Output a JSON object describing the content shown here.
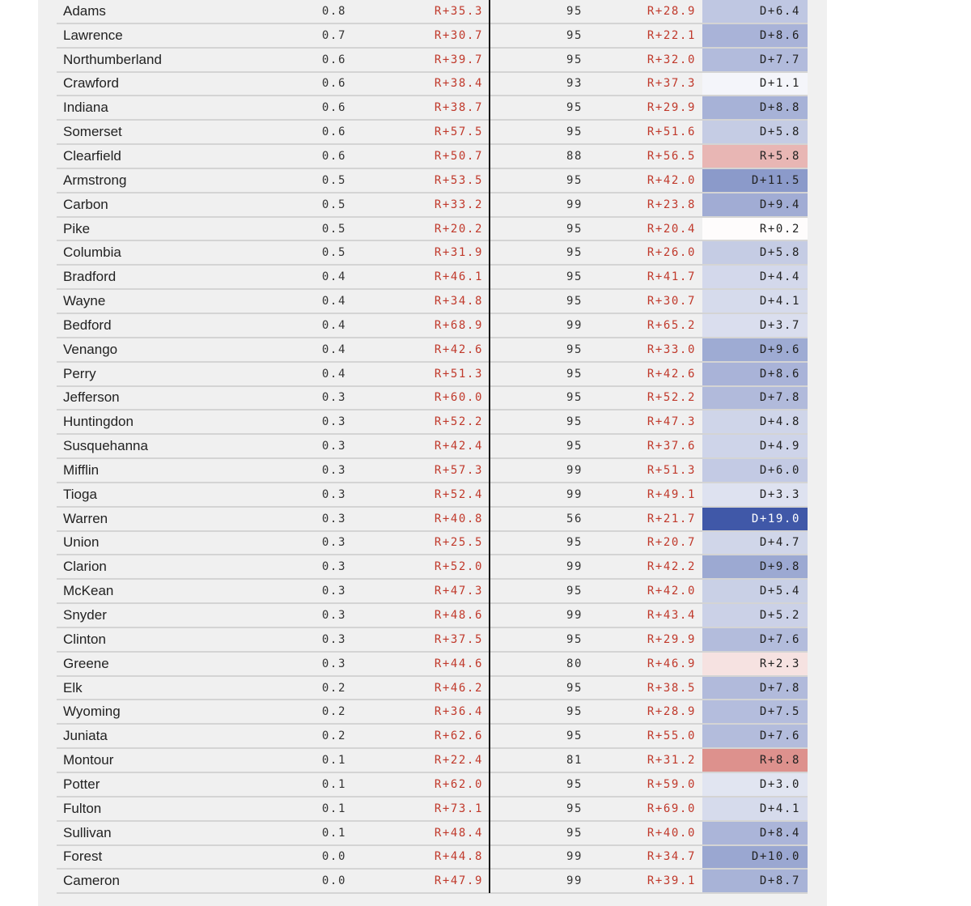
{
  "colors": {
    "panel_background": "#f0f0f0",
    "row_border": "#d4d4d4",
    "margin_text": "#c0392b",
    "democratic_shift": "#4058a8",
    "republican_shift": "#dc8e8a"
  },
  "rows": [
    {
      "county": "Adams",
      "share": "0.8",
      "margin_2016": "R+35.3",
      "reporting": "95",
      "margin_2020": "R+28.9",
      "shift": "D+6.4"
    },
    {
      "county": "Lawrence",
      "share": "0.7",
      "margin_2016": "R+30.7",
      "reporting": "95",
      "margin_2020": "R+22.1",
      "shift": "D+8.6"
    },
    {
      "county": "Northumberland",
      "share": "0.6",
      "margin_2016": "R+39.7",
      "reporting": "95",
      "margin_2020": "R+32.0",
      "shift": "D+7.7"
    },
    {
      "county": "Crawford",
      "share": "0.6",
      "margin_2016": "R+38.4",
      "reporting": "93",
      "margin_2020": "R+37.3",
      "shift": "D+1.1"
    },
    {
      "county": "Indiana",
      "share": "0.6",
      "margin_2016": "R+38.7",
      "reporting": "95",
      "margin_2020": "R+29.9",
      "shift": "D+8.8"
    },
    {
      "county": "Somerset",
      "share": "0.6",
      "margin_2016": "R+57.5",
      "reporting": "95",
      "margin_2020": "R+51.6",
      "shift": "D+5.8"
    },
    {
      "county": "Clearfield",
      "share": "0.6",
      "margin_2016": "R+50.7",
      "reporting": "88",
      "margin_2020": "R+56.5",
      "shift": "R+5.8"
    },
    {
      "county": "Armstrong",
      "share": "0.5",
      "margin_2016": "R+53.5",
      "reporting": "95",
      "margin_2020": "R+42.0",
      "shift": "D+11.5"
    },
    {
      "county": "Carbon",
      "share": "0.5",
      "margin_2016": "R+33.2",
      "reporting": "99",
      "margin_2020": "R+23.8",
      "shift": "D+9.4"
    },
    {
      "county": "Pike",
      "share": "0.5",
      "margin_2016": "R+20.2",
      "reporting": "95",
      "margin_2020": "R+20.4",
      "shift": "R+0.2"
    },
    {
      "county": "Columbia",
      "share": "0.5",
      "margin_2016": "R+31.9",
      "reporting": "95",
      "margin_2020": "R+26.0",
      "shift": "D+5.8"
    },
    {
      "county": "Bradford",
      "share": "0.4",
      "margin_2016": "R+46.1",
      "reporting": "95",
      "margin_2020": "R+41.7",
      "shift": "D+4.4"
    },
    {
      "county": "Wayne",
      "share": "0.4",
      "margin_2016": "R+34.8",
      "reporting": "95",
      "margin_2020": "R+30.7",
      "shift": "D+4.1"
    },
    {
      "county": "Bedford",
      "share": "0.4",
      "margin_2016": "R+68.9",
      "reporting": "99",
      "margin_2020": "R+65.2",
      "shift": "D+3.7"
    },
    {
      "county": "Venango",
      "share": "0.4",
      "margin_2016": "R+42.6",
      "reporting": "95",
      "margin_2020": "R+33.0",
      "shift": "D+9.6"
    },
    {
      "county": "Perry",
      "share": "0.4",
      "margin_2016": "R+51.3",
      "reporting": "95",
      "margin_2020": "R+42.6",
      "shift": "D+8.6"
    },
    {
      "county": "Jefferson",
      "share": "0.3",
      "margin_2016": "R+60.0",
      "reporting": "95",
      "margin_2020": "R+52.2",
      "shift": "D+7.8"
    },
    {
      "county": "Huntingdon",
      "share": "0.3",
      "margin_2016": "R+52.2",
      "reporting": "95",
      "margin_2020": "R+47.3",
      "shift": "D+4.8"
    },
    {
      "county": "Susquehanna",
      "share": "0.3",
      "margin_2016": "R+42.4",
      "reporting": "95",
      "margin_2020": "R+37.6",
      "shift": "D+4.9"
    },
    {
      "county": "Mifflin",
      "share": "0.3",
      "margin_2016": "R+57.3",
      "reporting": "99",
      "margin_2020": "R+51.3",
      "shift": "D+6.0"
    },
    {
      "county": "Tioga",
      "share": "0.3",
      "margin_2016": "R+52.4",
      "reporting": "99",
      "margin_2020": "R+49.1",
      "shift": "D+3.3"
    },
    {
      "county": "Warren",
      "share": "0.3",
      "margin_2016": "R+40.8",
      "reporting": "56",
      "margin_2020": "R+21.7",
      "shift": "D+19.0"
    },
    {
      "county": "Union",
      "share": "0.3",
      "margin_2016": "R+25.5",
      "reporting": "95",
      "margin_2020": "R+20.7",
      "shift": "D+4.7"
    },
    {
      "county": "Clarion",
      "share": "0.3",
      "margin_2016": "R+52.0",
      "reporting": "99",
      "margin_2020": "R+42.2",
      "shift": "D+9.8"
    },
    {
      "county": "McKean",
      "share": "0.3",
      "margin_2016": "R+47.3",
      "reporting": "95",
      "margin_2020": "R+42.0",
      "shift": "D+5.4"
    },
    {
      "county": "Snyder",
      "share": "0.3",
      "margin_2016": "R+48.6",
      "reporting": "99",
      "margin_2020": "R+43.4",
      "shift": "D+5.2"
    },
    {
      "county": "Clinton",
      "share": "0.3",
      "margin_2016": "R+37.5",
      "reporting": "95",
      "margin_2020": "R+29.9",
      "shift": "D+7.6"
    },
    {
      "county": "Greene",
      "share": "0.3",
      "margin_2016": "R+44.6",
      "reporting": "80",
      "margin_2020": "R+46.9",
      "shift": "R+2.3"
    },
    {
      "county": "Elk",
      "share": "0.2",
      "margin_2016": "R+46.2",
      "reporting": "95",
      "margin_2020": "R+38.5",
      "shift": "D+7.8"
    },
    {
      "county": "Wyoming",
      "share": "0.2",
      "margin_2016": "R+36.4",
      "reporting": "95",
      "margin_2020": "R+28.9",
      "shift": "D+7.5"
    },
    {
      "county": "Juniata",
      "share": "0.2",
      "margin_2016": "R+62.6",
      "reporting": "95",
      "margin_2020": "R+55.0",
      "shift": "D+7.6"
    },
    {
      "county": "Montour",
      "share": "0.1",
      "margin_2016": "R+22.4",
      "reporting": "81",
      "margin_2020": "R+31.2",
      "shift": "R+8.8"
    },
    {
      "county": "Potter",
      "share": "0.1",
      "margin_2016": "R+62.0",
      "reporting": "95",
      "margin_2020": "R+59.0",
      "shift": "D+3.0"
    },
    {
      "county": "Fulton",
      "share": "0.1",
      "margin_2016": "R+73.1",
      "reporting": "95",
      "margin_2020": "R+69.0",
      "shift": "D+4.1"
    },
    {
      "county": "Sullivan",
      "share": "0.1",
      "margin_2016": "R+48.4",
      "reporting": "95",
      "margin_2020": "R+40.0",
      "shift": "D+8.4"
    },
    {
      "county": "Forest",
      "share": "0.0",
      "margin_2016": "R+44.8",
      "reporting": "99",
      "margin_2020": "R+34.7",
      "shift": "D+10.0"
    },
    {
      "county": "Cameron",
      "share": "0.0",
      "margin_2016": "R+47.9",
      "reporting": "99",
      "margin_2020": "R+39.1",
      "shift": "D+8.7"
    }
  ]
}
